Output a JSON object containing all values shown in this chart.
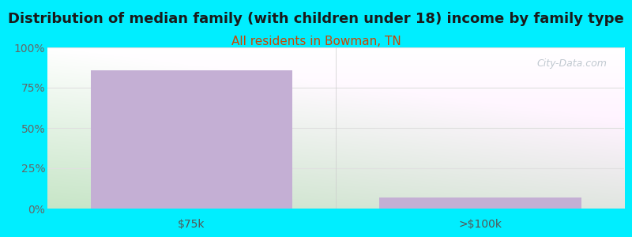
{
  "title": "Distribution of median family (with children under 18) income by family type",
  "subtitle": "All residents in Bowman, TN",
  "title_color": "#1a1a1a",
  "subtitle_color": "#cc4400",
  "categories": [
    "$75k",
    ">$100k"
  ],
  "values": [
    86,
    7
  ],
  "bar_color": "#c4afd4",
  "background_color": "#00eeff",
  "plot_bg_topleft": "#e8f5e0",
  "plot_bg_topright": "#ffffff",
  "plot_bg_bottomleft": "#c8eabc",
  "plot_bg_bottomright": "#f0f8ee",
  "ylim": [
    0,
    100
  ],
  "yticks": [
    0,
    25,
    50,
    75,
    100
  ],
  "ytick_labels": [
    "0%",
    "25%",
    "50%",
    "75%",
    "100%"
  ],
  "grid_color": "#e0e0e0",
  "title_fontsize": 13,
  "subtitle_fontsize": 11,
  "tick_fontsize": 10,
  "bar_width": 0.35,
  "watermark": "City-Data.com",
  "watermark_color": "#c0c8d0"
}
